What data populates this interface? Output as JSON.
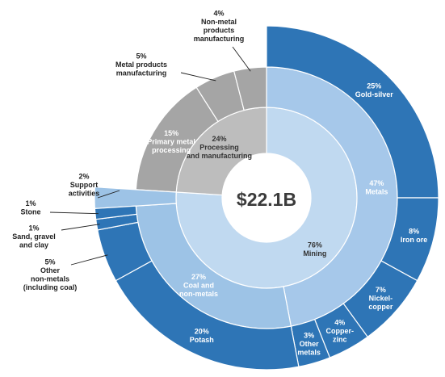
{
  "chart_data": {
    "type": "sunburst",
    "center_label": "$22.1B",
    "colors": {
      "inner_mining": "#c0d9f0",
      "inner_processing": "#bdbdbd",
      "middle_metals": "#a6c8ea",
      "middle_coal": "#9dc3e6",
      "middle_processing": "#a5a5a5",
      "outer_blue": "#2e75b6",
      "support": "#9dc3e6"
    },
    "inner": [
      {
        "label": "Mining",
        "pct_label": "76%",
        "value": 76
      },
      {
        "label": "Processing and manufacturing",
        "pct_label": "24%",
        "value": 24
      }
    ],
    "middle": [
      {
        "label": "Metals",
        "pct_label": "47%",
        "value": 47
      },
      {
        "label": "Coal and non-metals",
        "pct_label": "27%",
        "value": 27
      },
      {
        "label": "Support activities",
        "pct_label": "2%",
        "value": 2
      },
      {
        "label": "Primary metal processing",
        "pct_label": "15%",
        "value": 15
      },
      {
        "label": "Metal products manufacturing",
        "pct_label": "5%",
        "value": 5
      },
      {
        "label": "Non-metal products manufacturing",
        "pct_label": "4%",
        "value": 4
      }
    ],
    "outer": [
      {
        "label": "Gold-silver",
        "pct_label": "25%",
        "value": 25
      },
      {
        "label": "Iron ore",
        "pct_label": "8%",
        "value": 8
      },
      {
        "label": "Nickel-copper",
        "pct_label": "7%",
        "value": 7
      },
      {
        "label": "Copper-zinc",
        "pct_label": "4%",
        "value": 4
      },
      {
        "label": "Other metals",
        "pct_label": "3%",
        "value": 3
      },
      {
        "label": "Potash",
        "pct_label": "20%",
        "value": 20
      },
      {
        "label": "Other non-metals (including coal)",
        "pct_label": "5%",
        "value": 5
      },
      {
        "label": "Sand, gravel and clay",
        "pct_label": "1%",
        "value": 1
      },
      {
        "label": "Stone",
        "pct_label": "1%",
        "value": 1
      }
    ]
  }
}
